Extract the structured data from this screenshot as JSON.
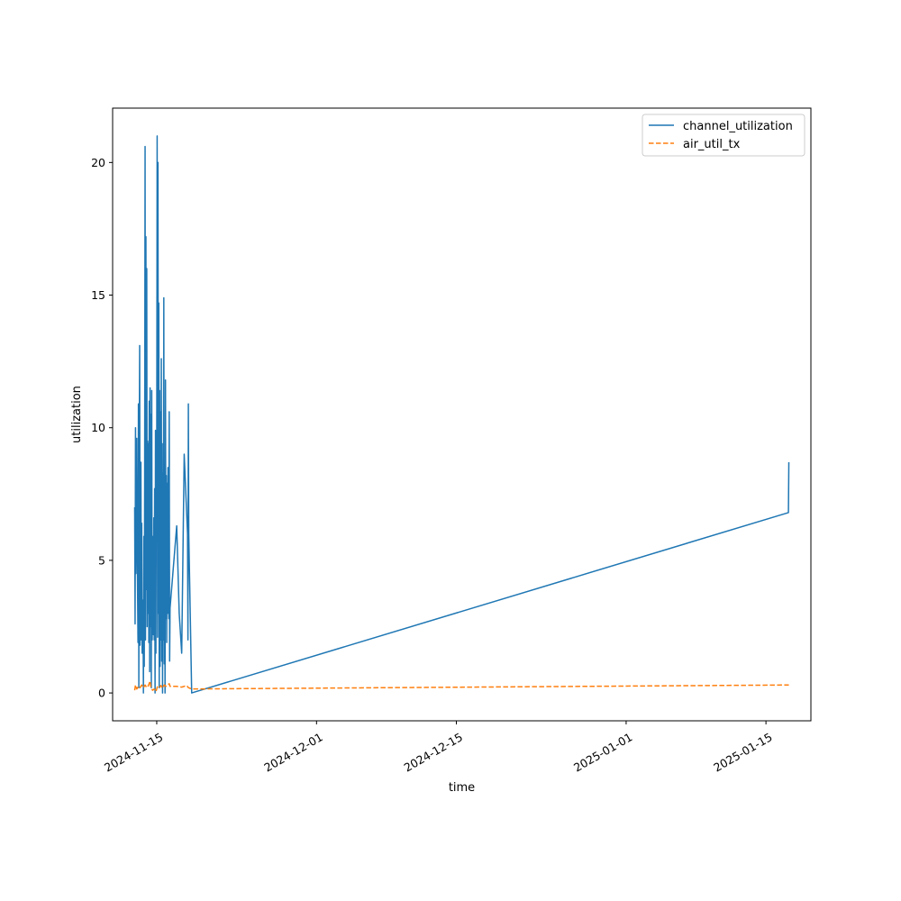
{
  "chart_data": {
    "type": "line",
    "title": "",
    "xlabel": "time",
    "ylabel": "utilization",
    "ylim": [
      -1.05,
      22.05
    ],
    "xlim": [
      "2024-11-10T14:00",
      "2025-01-19T12:00"
    ],
    "grid": false,
    "legend_position": "top-right",
    "x_ticks": [
      "2024-11-15",
      "2024-12-01",
      "2024-12-15",
      "2025-01-01",
      "2025-01-15"
    ],
    "y_ticks": [
      0,
      5,
      10,
      15,
      20
    ],
    "series": [
      {
        "name": "channel_utilization",
        "color": "#1f77b4",
        "style": "solid",
        "points": [
          [
            "2024-11-12T19:00",
            7.0
          ],
          [
            "2024-11-12T20:00",
            2.6
          ],
          [
            "2024-11-12T21:00",
            10.0
          ],
          [
            "2024-11-12T22:00",
            4.5
          ],
          [
            "2024-11-13T00:00",
            9.6
          ],
          [
            "2024-11-13T01:00",
            5.7
          ],
          [
            "2024-11-13T03:00",
            1.9
          ],
          [
            "2024-11-13T04:00",
            10.9
          ],
          [
            "2024-11-13T05:00",
            0.2
          ],
          [
            "2024-11-13T06:00",
            9.5
          ],
          [
            "2024-11-13T07:00",
            13.1
          ],
          [
            "2024-11-13T08:00",
            1.8
          ],
          [
            "2024-11-13T10:00",
            8.7
          ],
          [
            "2024-11-13T11:00",
            2.0
          ],
          [
            "2024-11-13T12:00",
            6.4
          ],
          [
            "2024-11-13T13:00",
            1.5
          ],
          [
            "2024-11-13T15:00",
            3.5
          ],
          [
            "2024-11-13T16:00",
            0.0
          ],
          [
            "2024-11-13T17:00",
            5.9
          ],
          [
            "2024-11-13T18:00",
            1.0
          ],
          [
            "2024-11-13T19:00",
            8.0
          ],
          [
            "2024-11-13T20:00",
            20.6
          ],
          [
            "2024-11-13T21:00",
            2.0
          ],
          [
            "2024-11-13T22:00",
            17.2
          ],
          [
            "2024-11-13T23:00",
            3.9
          ],
          [
            "2024-11-14T00:00",
            16.0
          ],
          [
            "2024-11-14T01:00",
            2.5
          ],
          [
            "2024-11-14T02:00",
            9.5
          ],
          [
            "2024-11-14T03:00",
            3.0
          ],
          [
            "2024-11-14T04:00",
            9.4
          ],
          [
            "2024-11-14T05:00",
            1.9
          ],
          [
            "2024-11-14T06:00",
            11.0
          ],
          [
            "2024-11-14T07:00",
            0.8
          ],
          [
            "2024-11-14T08:00",
            11.5
          ],
          [
            "2024-11-14T09:00",
            2.5
          ],
          [
            "2024-11-14T10:00",
            10.5
          ],
          [
            "2024-11-14T11:00",
            0.2
          ],
          [
            "2024-11-14T12:00",
            11.4
          ],
          [
            "2024-11-14T13:00",
            2.0
          ],
          [
            "2024-11-14T15:00",
            5.9
          ],
          [
            "2024-11-14T16:00",
            2.2
          ],
          [
            "2024-11-14T17:00",
            6.6
          ],
          [
            "2024-11-14T18:00",
            2.0
          ],
          [
            "2024-11-14T19:00",
            7.7
          ],
          [
            "2024-11-14T20:00",
            0.0
          ],
          [
            "2024-11-14T21:00",
            9.9
          ],
          [
            "2024-11-14T22:00",
            1.5
          ],
          [
            "2024-11-14T23:00",
            9.4
          ],
          [
            "2024-11-15T00:00",
            8.8
          ],
          [
            "2024-11-15T01:00",
            21.0
          ],
          [
            "2024-11-15T02:00",
            2.1
          ],
          [
            "2024-11-15T03:00",
            20.0
          ],
          [
            "2024-11-15T04:00",
            3.0
          ],
          [
            "2024-11-15T05:00",
            14.7
          ],
          [
            "2024-11-15T06:00",
            0.2
          ],
          [
            "2024-11-15T07:00",
            11.4
          ],
          [
            "2024-11-15T08:00",
            1.0
          ],
          [
            "2024-11-15T09:00",
            10.6
          ],
          [
            "2024-11-15T10:00",
            2.0
          ],
          [
            "2024-11-15T11:00",
            12.6
          ],
          [
            "2024-11-15T12:00",
            1.2
          ],
          [
            "2024-11-15T13:00",
            9.4
          ],
          [
            "2024-11-15T14:00",
            0.0
          ],
          [
            "2024-11-15T15:00",
            8.3
          ],
          [
            "2024-11-15T16:00",
            2.0
          ],
          [
            "2024-11-15T17:00",
            14.9
          ],
          [
            "2024-11-15T18:00",
            1.1
          ],
          [
            "2024-11-15T19:00",
            8.6
          ],
          [
            "2024-11-15T20:00",
            0.0
          ],
          [
            "2024-11-15T21:00",
            11.8
          ],
          [
            "2024-11-15T22:00",
            2.8
          ],
          [
            "2024-11-15T23:00",
            8.2
          ],
          [
            "2024-11-16T00:00",
            1.9
          ],
          [
            "2024-11-16T01:00",
            7.9
          ],
          [
            "2024-11-16T02:00",
            3.0
          ],
          [
            "2024-11-16T03:00",
            8.5
          ],
          [
            "2024-11-16T04:00",
            4.0
          ],
          [
            "2024-11-16T05:00",
            2.8
          ],
          [
            "2024-11-16T06:00",
            10.6
          ],
          [
            "2024-11-16T07:00",
            1.2
          ],
          [
            "2024-11-16T08:00",
            3.2
          ],
          [
            "2024-11-17T00:00",
            6.3
          ],
          [
            "2024-11-17T06:00",
            3.0
          ],
          [
            "2024-11-17T12:00",
            1.5
          ],
          [
            "2024-11-17T18:00",
            9.0
          ],
          [
            "2024-11-18T02:00",
            6.0
          ],
          [
            "2024-11-18T03:00",
            2.0
          ],
          [
            "2024-11-18T04:00",
            10.9
          ],
          [
            "2024-11-18T05:00",
            6.0
          ],
          [
            "2024-11-18T12:00",
            0.0
          ],
          [
            "2025-01-17T06:00",
            6.8
          ],
          [
            "2025-01-17T07:00",
            8.7
          ]
        ]
      },
      {
        "name": "air_util_tx",
        "color": "#ff7f0e",
        "style": "dashed",
        "points": [
          [
            "2024-11-12T19:00",
            0.1
          ],
          [
            "2024-11-12T21:00",
            0.3
          ],
          [
            "2024-11-13T00:00",
            0.15
          ],
          [
            "2024-11-13T04:00",
            0.25
          ],
          [
            "2024-11-13T08:00",
            0.2
          ],
          [
            "2024-11-13T12:00",
            0.3
          ],
          [
            "2024-11-13T16:00",
            0.2
          ],
          [
            "2024-11-13T20:00",
            0.3
          ],
          [
            "2024-11-14T00:00",
            0.2
          ],
          [
            "2024-11-14T04:00",
            0.28
          ],
          [
            "2024-11-14T08:00",
            0.45
          ],
          [
            "2024-11-14T10:00",
            0.2
          ],
          [
            "2024-11-14T14:00",
            0.1
          ],
          [
            "2024-11-14T18:00",
            0.15
          ],
          [
            "2024-11-14T22:00",
            0.05
          ],
          [
            "2024-11-15T02:00",
            0.25
          ],
          [
            "2024-11-15T06:00",
            0.2
          ],
          [
            "2024-11-15T10:00",
            0.28
          ],
          [
            "2024-11-15T14:00",
            0.18
          ],
          [
            "2024-11-15T18:00",
            0.3
          ],
          [
            "2024-11-15T22:00",
            0.25
          ],
          [
            "2024-11-16T02:00",
            0.3
          ],
          [
            "2024-11-16T06:00",
            0.35
          ],
          [
            "2024-11-16T08:00",
            0.25
          ],
          [
            "2024-11-17T00:00",
            0.25
          ],
          [
            "2024-11-17T12:00",
            0.22
          ],
          [
            "2024-11-18T00:00",
            0.28
          ],
          [
            "2024-11-18T04:00",
            0.2
          ],
          [
            "2024-11-18T12:00",
            0.15
          ],
          [
            "2025-01-17T07:00",
            0.3
          ]
        ]
      }
    ]
  }
}
